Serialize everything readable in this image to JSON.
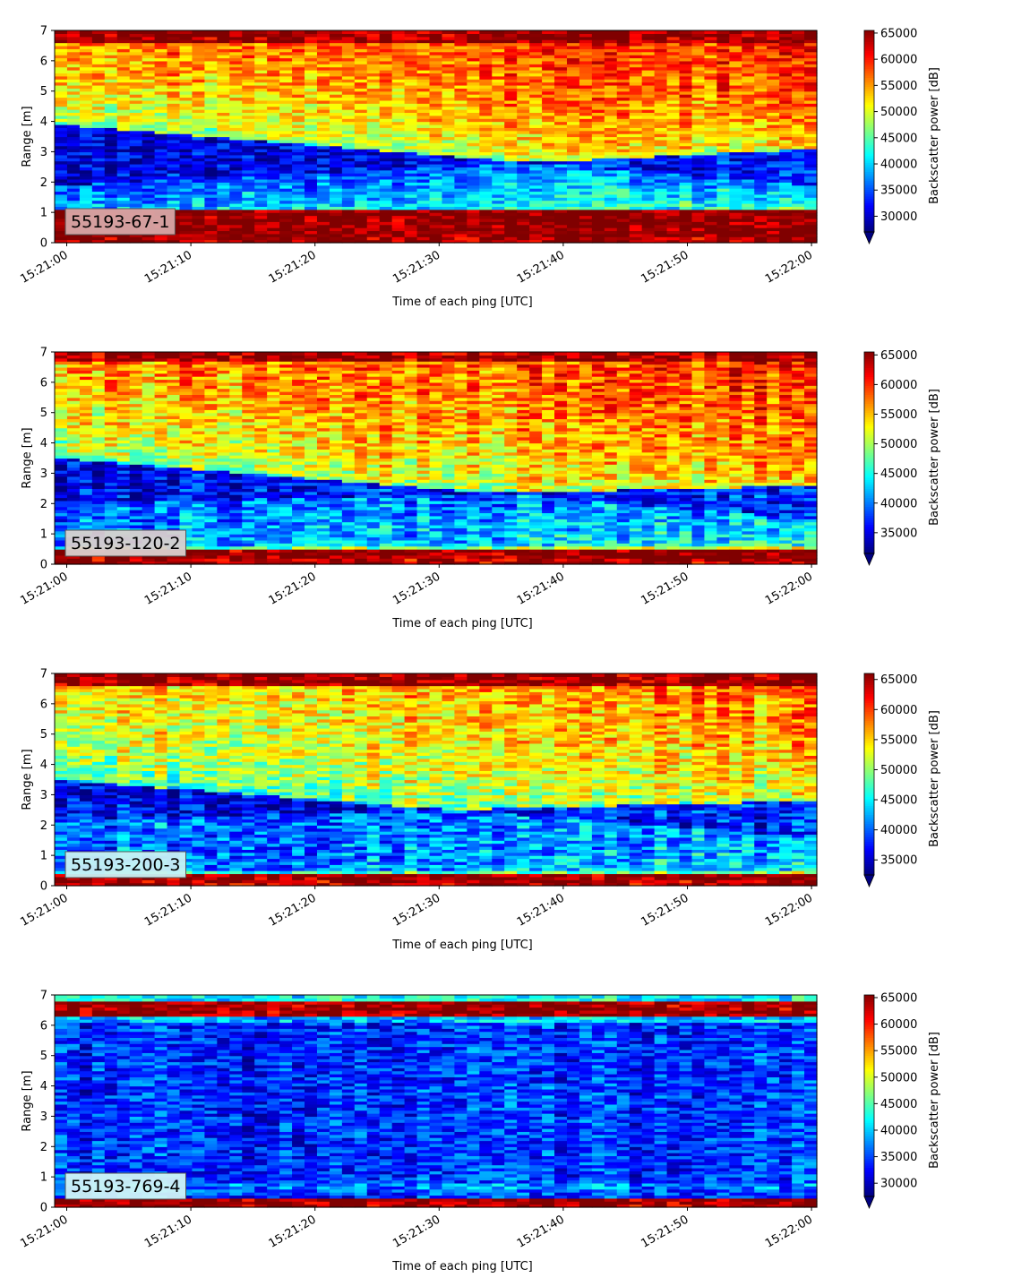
{
  "chart_data": [
    {
      "type": "heatmap",
      "label": "55193-67-1",
      "label_box_color": "#d7a6a7",
      "xlabel": "Time of each ping [UTC]",
      "ylabel": "Range [m]",
      "xticks": [
        "15:21:00",
        "15:21:10",
        "15:21:20",
        "15:21:30",
        "15:21:40",
        "15:21:50",
        "15:22:00"
      ],
      "xlim": [
        "15:21:00",
        "15:22:00"
      ],
      "yticks": [
        0,
        1,
        2,
        3,
        4,
        5,
        6,
        7
      ],
      "ylim": [
        0,
        7
      ],
      "colorbar": {
        "label": "Backscatter power [dB]",
        "ticks": [
          30000,
          35000,
          40000,
          45000,
          50000,
          55000,
          60000,
          65000
        ],
        "range": [
          27000,
          65500
        ],
        "colormap": "jet",
        "extend": "min"
      },
      "profile": {
        "bottom_band_top": [
          1.15,
          1.15
        ],
        "dark_layer_start": [
          3.9,
          1.9
        ],
        "dark_layer_end": [
          1.9,
          3.1
        ],
        "dark_level": [
          30000,
          33000
        ],
        "mid_level": [
          44000,
          50000
        ],
        "upper_level": [
          55000,
          60000
        ],
        "top_band": [
          6.6,
          7.0
        ]
      }
    },
    {
      "type": "heatmap",
      "label": "55193-120-2",
      "label_box_color": "#d9cfcd",
      "xlabel": "Time of each ping [UTC]",
      "ylabel": "Range [m]",
      "xticks": [
        "15:21:00",
        "15:21:10",
        "15:21:20",
        "15:21:30",
        "15:21:40",
        "15:21:50",
        "15:22:00"
      ],
      "xlim": [
        "15:21:00",
        "15:22:00"
      ],
      "yticks": [
        0,
        1,
        2,
        3,
        4,
        5,
        6,
        7
      ],
      "ylim": [
        0,
        7
      ],
      "colorbar": {
        "label": "Backscatter power [dB]",
        "ticks": [
          35000,
          40000,
          45000,
          50000,
          55000,
          60000,
          65000
        ],
        "range": [
          31500,
          65500
        ],
        "colormap": "jet",
        "extend": "min"
      },
      "profile": {
        "bottom_band_top": [
          0.55,
          0.55
        ],
        "dark_layer_start": [
          3.5,
          1.5
        ],
        "dark_layer_end": [
          2.0,
          2.6
        ],
        "dark_level": [
          35000,
          37000
        ],
        "mid_level": [
          46000,
          52000
        ],
        "upper_level": [
          56000,
          60000
        ],
        "top_band": [
          6.7,
          7.0
        ]
      }
    },
    {
      "type": "heatmap",
      "label": "55193-200-3",
      "label_box_color": "#c8f1f4",
      "xlabel": "Time of each ping [UTC]",
      "ylabel": "Range [m]",
      "xticks": [
        "15:21:00",
        "15:21:10",
        "15:21:20",
        "15:21:30",
        "15:21:40",
        "15:21:50",
        "15:22:00"
      ],
      "xlim": [
        "15:21:00",
        "15:22:00"
      ],
      "yticks": [
        0,
        1,
        2,
        3,
        4,
        5,
        6,
        7
      ],
      "ylim": [
        0,
        7
      ],
      "colorbar": {
        "label": "Backscatter power [dB]",
        "ticks": [
          35000,
          40000,
          45000,
          50000,
          55000,
          60000,
          65000
        ],
        "range": [
          32500,
          66000
        ],
        "colormap": "jet",
        "extend": "min"
      },
      "profile": {
        "bottom_band_top": [
          0.45,
          0.45
        ],
        "dark_layer_start": [
          3.5,
          1.6
        ],
        "dark_layer_end": [
          2.2,
          2.8
        ],
        "dark_level": [
          36000,
          37500
        ],
        "mid_level": [
          46000,
          50000
        ],
        "upper_level": [
          54000,
          58000
        ],
        "top_band": [
          6.6,
          7.0
        ]
      }
    },
    {
      "type": "heatmap",
      "label": "55193-769-4",
      "label_box_color": "#d0f4f7",
      "xlabel": "Time of each ping [UTC]",
      "ylabel": "Range [m]",
      "xticks": [
        "15:21:00",
        "15:21:10",
        "15:21:20",
        "15:21:30",
        "15:21:40",
        "15:21:50",
        "15:22:00"
      ],
      "xlim": [
        "15:21:00",
        "15:22:00"
      ],
      "yticks": [
        0,
        1,
        2,
        3,
        4,
        5,
        6,
        7
      ],
      "ylim": [
        0,
        7
      ],
      "colorbar": {
        "label": "Backscatter power [dB]",
        "ticks": [
          30000,
          35000,
          40000,
          45000,
          50000,
          55000,
          60000,
          65000
        ],
        "range": [
          27500,
          65500
        ],
        "colormap": "jet",
        "extend": "min"
      },
      "profile": {
        "bottom_band_top": [
          0.3,
          0.3
        ],
        "dark_layer_start": [
          6.1,
          6.1
        ],
        "dark_layer_end": [
          0.8,
          0.8
        ],
        "dark_level": [
          33500,
          34500
        ],
        "mid_level": [
          38500,
          40000
        ],
        "upper_level": [
          38000,
          39000
        ],
        "top_band": [
          6.35,
          6.85
        ]
      }
    }
  ]
}
